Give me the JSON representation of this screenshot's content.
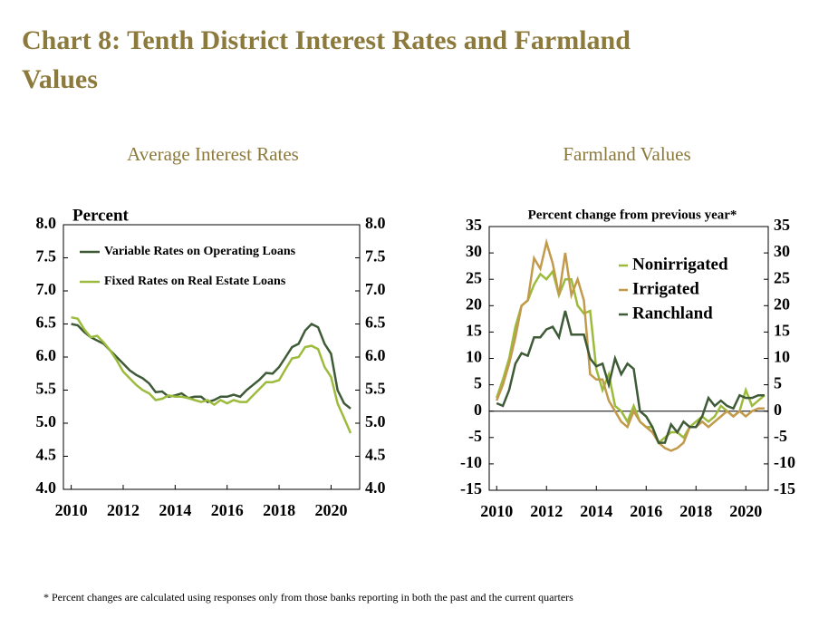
{
  "title": "Chart 8: Tenth District Interest Rates and Farmland Values",
  "footnote": "* Percent changes are calculated using responses only from those banks reporting in both the past and the current quarters",
  "chart_data": [
    {
      "type": "line",
      "title": "Average Interest Rates",
      "y_label": "Percent",
      "legend": "upper-left",
      "xlim": [
        2009.7,
        2021.1
      ],
      "xticks": [
        2010,
        2012,
        2014,
        2016,
        2018,
        2020
      ],
      "ylim": [
        4,
        8
      ],
      "yticks": [
        {
          "value": 4,
          "label": "4.0"
        },
        {
          "value": 4.5,
          "label": "4.5"
        },
        {
          "value": 5,
          "label": "5.0"
        },
        {
          "value": 5.5,
          "label": "5.5"
        },
        {
          "value": 6,
          "label": "6.0"
        },
        {
          "value": 6.5,
          "label": "6.5"
        },
        {
          "value": 7,
          "label": "7.0"
        },
        {
          "value": 7.5,
          "label": "7.5"
        },
        {
          "value": 8,
          "label": "8.0"
        }
      ],
      "x": [
        2010,
        2010.25,
        2010.5,
        2010.75,
        2011,
        2011.25,
        2011.5,
        2011.75,
        2012,
        2012.25,
        2012.5,
        2012.75,
        2013,
        2013.25,
        2013.5,
        2013.75,
        2014,
        2014.25,
        2014.5,
        2014.75,
        2015,
        2015.25,
        2015.5,
        2015.75,
        2016,
        2016.25,
        2016.5,
        2016.75,
        2017,
        2017.25,
        2017.5,
        2017.75,
        2018,
        2018.25,
        2018.5,
        2018.75,
        2019,
        2019.25,
        2019.5,
        2019.75,
        2020,
        2020.25,
        2020.5,
        2020.75
      ],
      "series": [
        {
          "name": "Variable Rates on Operating Loans",
          "color": "#3e5a37",
          "values": [
            6.5,
            6.48,
            6.38,
            6.3,
            6.25,
            6.2,
            6.1,
            6.0,
            5.9,
            5.8,
            5.73,
            5.68,
            5.6,
            5.47,
            5.48,
            5.4,
            5.42,
            5.45,
            5.38,
            5.4,
            5.4,
            5.32,
            5.35,
            5.4,
            5.4,
            5.43,
            5.4,
            5.5,
            5.58,
            5.66,
            5.76,
            5.75,
            5.85,
            6.0,
            6.15,
            6.2,
            6.4,
            6.5,
            6.45,
            6.2,
            6.05,
            5.5,
            5.3,
            5.22
          ]
        },
        {
          "name": "Fixed Rates on Real Estate Loans",
          "color": "#9cbb3c",
          "values": [
            6.6,
            6.58,
            6.42,
            6.3,
            6.32,
            6.22,
            6.1,
            5.95,
            5.78,
            5.68,
            5.58,
            5.5,
            5.45,
            5.35,
            5.37,
            5.42,
            5.4,
            5.4,
            5.38,
            5.35,
            5.32,
            5.35,
            5.28,
            5.35,
            5.3,
            5.35,
            5.32,
            5.32,
            5.42,
            5.52,
            5.62,
            5.62,
            5.65,
            5.82,
            5.98,
            6.0,
            6.15,
            6.17,
            6.12,
            5.85,
            5.7,
            5.3,
            5.08,
            4.85
          ]
        }
      ]
    },
    {
      "type": "line",
      "title": "Farmland Values",
      "y_label": "Percent change from previous year*",
      "legend": "upper-right",
      "zero_line": true,
      "xlim": [
        2009.7,
        2020.9
      ],
      "xticks": [
        2010,
        2012,
        2014,
        2016,
        2018,
        2020
      ],
      "ylim": [
        -15,
        35
      ],
      "yticks": [
        -15,
        -10,
        -5,
        0,
        5,
        10,
        15,
        20,
        25,
        30,
        35
      ],
      "x": [
        2010,
        2010.25,
        2010.5,
        2010.75,
        2011,
        2011.25,
        2011.5,
        2011.75,
        2012,
        2012.25,
        2012.5,
        2012.75,
        2013,
        2013.25,
        2013.5,
        2013.75,
        2014,
        2014.25,
        2014.5,
        2014.75,
        2015,
        2015.25,
        2015.5,
        2015.75,
        2016,
        2016.25,
        2016.5,
        2016.75,
        2017,
        2017.25,
        2017.5,
        2017.75,
        2018,
        2018.25,
        2018.5,
        2018.75,
        2019,
        2019.25,
        2019.5,
        2019.75,
        2020,
        2020.25,
        2020.5,
        2020.75
      ],
      "series": [
        {
          "name": "Nonirrigated",
          "color": "#9cbb3c",
          "values": [
            2.5,
            6,
            10,
            16,
            20,
            21,
            24,
            26,
            25,
            26.5,
            22,
            25,
            25,
            20,
            18.5,
            19,
            8,
            4,
            7,
            1,
            0,
            -2,
            1,
            -2,
            -3,
            -3,
            -6,
            -5,
            -4,
            -4,
            -5,
            -3,
            -2,
            -1,
            -2,
            -1,
            1,
            0,
            -1,
            0,
            4,
            1,
            2,
            3
          ]
        },
        {
          "name": "Irrigated",
          "color": "#c29a4c",
          "values": [
            2,
            5,
            9,
            14,
            20,
            21,
            29,
            27,
            32,
            28,
            22,
            30,
            22,
            25,
            21,
            7,
            6,
            6,
            2,
            0,
            -2,
            -3,
            0,
            -2,
            -3,
            -4,
            -6,
            -7,
            -7.5,
            -7,
            -6,
            -3,
            -3,
            -2,
            -3,
            -2,
            -1,
            0,
            -1,
            0,
            -1,
            0,
            0.5,
            0.5
          ]
        },
        {
          "name": "Ranchland",
          "color": "#3e5a37",
          "values": [
            1.5,
            1,
            4,
            9,
            11,
            10.5,
            14,
            14,
            15.5,
            16,
            14,
            19,
            14.5,
            14.5,
            14.5,
            10,
            8.5,
            9,
            5,
            10,
            7,
            9,
            8,
            0,
            -1,
            -3,
            -6,
            -6,
            -2.5,
            -4,
            -2,
            -3,
            -3,
            -1,
            2.5,
            1,
            2,
            1,
            0.5,
            3,
            2.5,
            2.5,
            3,
            3
          ]
        }
      ]
    }
  ]
}
